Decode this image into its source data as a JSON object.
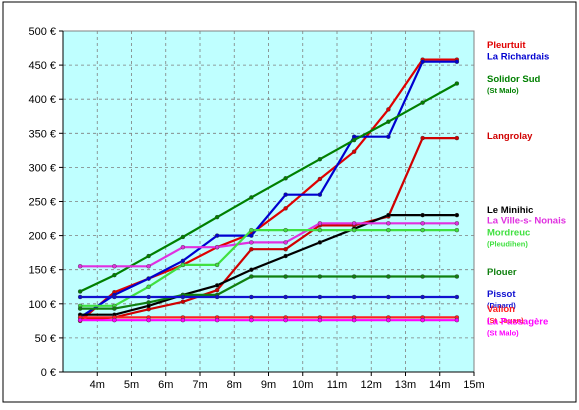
{
  "chart_data": {
    "type": "line",
    "title": "",
    "xlabel": "",
    "ylabel": "",
    "xlim": [
      3,
      15
    ],
    "ylim": [
      0,
      500
    ],
    "grid": true,
    "legend_placement": "right",
    "colors": {
      "plot_background": "#bfffff",
      "page_background": "#ffffff",
      "grid": "#7f7f7f"
    },
    "x_ticks": [
      {
        "value": 4,
        "label": "4m"
      },
      {
        "value": 5,
        "label": "5m"
      },
      {
        "value": 6,
        "label": "6m"
      },
      {
        "value": 7,
        "label": "7m"
      },
      {
        "value": 8,
        "label": "8m"
      },
      {
        "value": 9,
        "label": "9m"
      },
      {
        "value": 10,
        "label": "10m"
      },
      {
        "value": 11,
        "label": "11m"
      },
      {
        "value": 12,
        "label": "12m"
      },
      {
        "value": 13,
        "label": "13m"
      },
      {
        "value": 14,
        "label": "14m"
      },
      {
        "value": 15,
        "label": "15m"
      }
    ],
    "y_ticks": [
      {
        "value": 0,
        "label": "0 €"
      },
      {
        "value": 50,
        "label": "50 €"
      },
      {
        "value": 100,
        "label": "100 €"
      },
      {
        "value": 150,
        "label": "150 €"
      },
      {
        "value": 200,
        "label": "200 €"
      },
      {
        "value": 250,
        "label": "250 €"
      },
      {
        "value": 300,
        "label": "300 €"
      },
      {
        "value": 350,
        "label": "350 €"
      },
      {
        "value": 400,
        "label": "400 €"
      },
      {
        "value": 450,
        "label": "450 €"
      },
      {
        "value": 500,
        "label": "500 €"
      }
    ],
    "series": [
      {
        "name": "Pleurtuit",
        "sub": "",
        "color": "#e00000",
        "label_value": 475,
        "points": [
          [
            3.5,
            75
          ],
          [
            4.5,
            117
          ],
          [
            5.5,
            137
          ],
          [
            6.5,
            157
          ],
          [
            7.5,
            183
          ],
          [
            8.5,
            203
          ],
          [
            9.5,
            240
          ],
          [
            10.5,
            283
          ],
          [
            11.5,
            323
          ],
          [
            12.5,
            385
          ],
          [
            13.5,
            458
          ],
          [
            14.5,
            458
          ]
        ]
      },
      {
        "name": "La Richardais",
        "sub": "",
        "color": "#0000d0",
        "label_value": 458,
        "points": [
          [
            3.5,
            80
          ],
          [
            4.5,
            113
          ],
          [
            5.5,
            137
          ],
          [
            6.5,
            163
          ],
          [
            7.5,
            200
          ],
          [
            8.5,
            200
          ],
          [
            9.5,
            260
          ],
          [
            10.5,
            260
          ],
          [
            11.5,
            345
          ],
          [
            12.5,
            345
          ],
          [
            13.5,
            455
          ],
          [
            14.5,
            455
          ]
        ]
      },
      {
        "name": "Solidor Sud",
        "sub": "(St Malo)",
        "color": "#008000",
        "label_value": 425,
        "points": [
          [
            3.5,
            118
          ],
          [
            4.5,
            142
          ],
          [
            5.5,
            170
          ],
          [
            6.5,
            198
          ],
          [
            7.5,
            227
          ],
          [
            8.5,
            256
          ],
          [
            9.5,
            284
          ],
          [
            10.5,
            312
          ],
          [
            11.5,
            340
          ],
          [
            12.5,
            367
          ],
          [
            13.5,
            395
          ],
          [
            14.5,
            423
          ]
        ]
      },
      {
        "name": "Langrolay",
        "sub": "",
        "color": "#d00000",
        "label_value": 342,
        "points": [
          [
            3.5,
            76
          ],
          [
            4.5,
            80
          ],
          [
            5.5,
            92
          ],
          [
            6.5,
            103
          ],
          [
            7.5,
            120
          ],
          [
            8.5,
            180
          ],
          [
            9.5,
            180
          ],
          [
            10.5,
            215
          ],
          [
            11.5,
            215
          ],
          [
            12.5,
            228
          ],
          [
            13.5,
            343
          ],
          [
            14.5,
            343
          ]
        ]
      },
      {
        "name": "Le Minihic",
        "sub": "",
        "color": "#000000",
        "label_value": 233,
        "points": [
          [
            3.5,
            84
          ],
          [
            4.5,
            84
          ],
          [
            5.5,
            97
          ],
          [
            6.5,
            113
          ],
          [
            7.5,
            127
          ],
          [
            8.5,
            150
          ],
          [
            9.5,
            170
          ],
          [
            10.5,
            190
          ],
          [
            11.5,
            210
          ],
          [
            12.5,
            230
          ],
          [
            13.5,
            230
          ],
          [
            14.5,
            230
          ]
        ]
      },
      {
        "name": "La Ville-s- Nonais",
        "sub": "",
        "color": "#e030e0",
        "label_value": 218,
        "points": [
          [
            3.5,
            155
          ],
          [
            4.5,
            155
          ],
          [
            5.5,
            155
          ],
          [
            6.5,
            183
          ],
          [
            7.5,
            183
          ],
          [
            8.5,
            190
          ],
          [
            9.5,
            190
          ],
          [
            10.5,
            218
          ],
          [
            11.5,
            218
          ],
          [
            12.5,
            218
          ],
          [
            13.5,
            218
          ],
          [
            14.5,
            218
          ]
        ]
      },
      {
        "name": "Mordreuc",
        "sub": "(Pleudihen)",
        "color": "#40e040",
        "label_value": 200,
        "points": [
          [
            3.5,
            97
          ],
          [
            4.5,
            97
          ],
          [
            5.5,
            125
          ],
          [
            6.5,
            157
          ],
          [
            7.5,
            157
          ],
          [
            8.5,
            208
          ],
          [
            9.5,
            208
          ],
          [
            10.5,
            208
          ],
          [
            11.5,
            208
          ],
          [
            12.5,
            208
          ],
          [
            13.5,
            208
          ],
          [
            14.5,
            208
          ]
        ]
      },
      {
        "name": "Plouer",
        "sub": "",
        "color": "#108010",
        "label_value": 142,
        "points": [
          [
            3.5,
            93
          ],
          [
            4.5,
            93
          ],
          [
            5.5,
            102
          ],
          [
            6.5,
            113
          ],
          [
            7.5,
            113
          ],
          [
            8.5,
            140
          ],
          [
            9.5,
            140
          ],
          [
            10.5,
            140
          ],
          [
            11.5,
            140
          ],
          [
            12.5,
            140
          ],
          [
            13.5,
            140
          ],
          [
            14.5,
            140
          ]
        ]
      },
      {
        "name": "Pissot",
        "sub": "(Dinard)",
        "color": "#1010d0",
        "label_value": 110,
        "points": [
          [
            3.5,
            110
          ],
          [
            4.5,
            110
          ],
          [
            5.5,
            110
          ],
          [
            6.5,
            110
          ],
          [
            7.5,
            110
          ],
          [
            8.5,
            110
          ],
          [
            9.5,
            110
          ],
          [
            10.5,
            110
          ],
          [
            11.5,
            110
          ],
          [
            12.5,
            110
          ],
          [
            13.5,
            110
          ],
          [
            14.5,
            110
          ]
        ]
      },
      {
        "name": "Valion",
        "sub": "(St Jouan)",
        "color": "#ff2020",
        "label_value": 88,
        "points": [
          [
            3.5,
            80
          ],
          [
            4.5,
            80
          ],
          [
            5.5,
            80
          ],
          [
            6.5,
            80
          ],
          [
            7.5,
            80
          ],
          [
            8.5,
            80
          ],
          [
            9.5,
            80
          ],
          [
            10.5,
            80
          ],
          [
            11.5,
            80
          ],
          [
            12.5,
            80
          ],
          [
            13.5,
            80
          ],
          [
            14.5,
            80
          ]
        ]
      },
      {
        "name": "La Passagère",
        "sub": "(St Malo)",
        "color": "#ff00ff",
        "label_value": 70,
        "points": [
          [
            3.5,
            76
          ],
          [
            4.5,
            76
          ],
          [
            5.5,
            76
          ],
          [
            6.5,
            76
          ],
          [
            7.5,
            76
          ],
          [
            8.5,
            76
          ],
          [
            9.5,
            76
          ],
          [
            10.5,
            76
          ],
          [
            11.5,
            76
          ],
          [
            12.5,
            76
          ],
          [
            13.5,
            76
          ],
          [
            14.5,
            76
          ]
        ]
      }
    ]
  }
}
